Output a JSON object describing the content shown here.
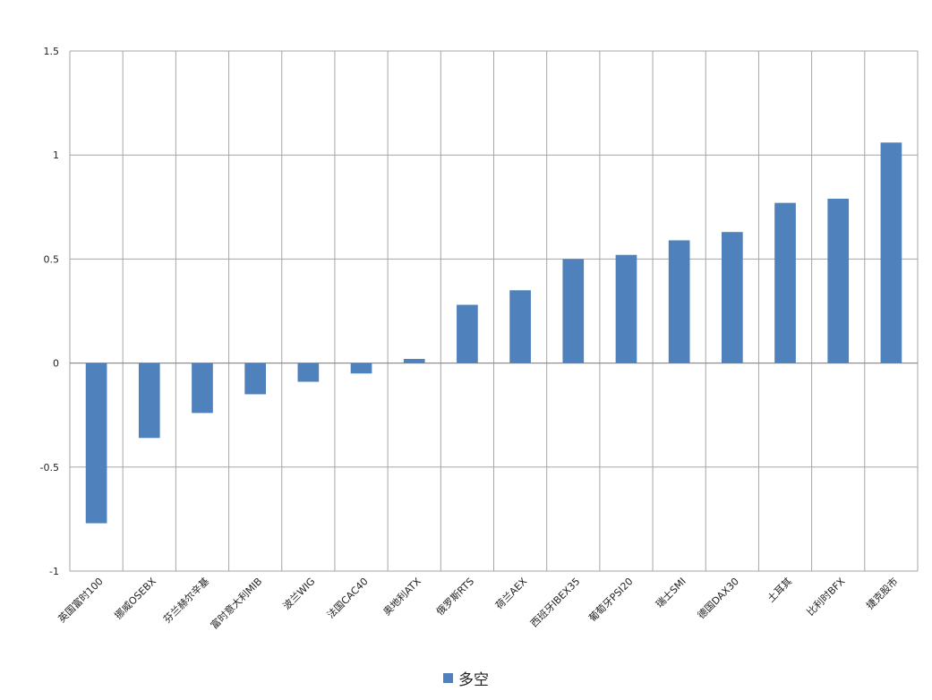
{
  "chart_data": {
    "type": "bar",
    "categories": [
      "英国富时100",
      "挪威OSEBX",
      "芬兰赫尔辛基",
      "富时意大利MIB",
      "波兰WIG",
      "法国CAC40",
      "奥地利ATX",
      "俄罗斯RTS",
      "荷兰AEX",
      "西班牙IBEX35",
      "葡萄牙PSI20",
      "瑞士SMI",
      "德国DAX30",
      "土耳其",
      "比利时BFX",
      "捷克股市"
    ],
    "series": [
      {
        "name": "多空",
        "values": [
          -0.77,
          -0.36,
          -0.24,
          -0.15,
          -0.09,
          -0.05,
          0.02,
          0.28,
          0.35,
          0.5,
          0.52,
          0.59,
          0.63,
          0.77,
          0.79,
          1.06
        ],
        "color": "#4f81bd"
      }
    ],
    "ylim": [
      -1,
      1.5
    ],
    "yticks": [
      "1.5",
      "1",
      "0.5",
      "0",
      "-0.5",
      "-1"
    ],
    "ytick_values": [
      1.5,
      1,
      0.5,
      0,
      -0.5,
      -1
    ],
    "grid": "both",
    "legend": "bottom",
    "colors": {
      "bar": "#4f81bd",
      "grid": "#a6a6a6",
      "axis": "#868686"
    }
  }
}
